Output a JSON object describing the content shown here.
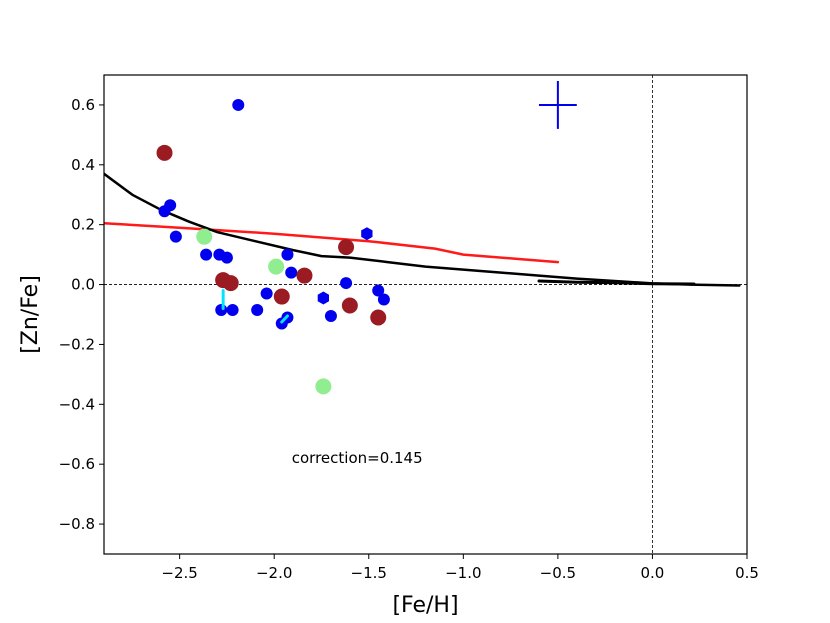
{
  "chart_data": {
    "type": "scatter",
    "title": "",
    "xlabel": "[Fe/H]",
    "ylabel": "[Zn/Fe]",
    "xlim": [
      -2.9,
      0.5
    ],
    "ylim": [
      -0.9,
      0.7
    ],
    "xticks": [
      -2.5,
      -2.0,
      -1.5,
      -1.0,
      -0.5,
      0.0,
      0.5
    ],
    "xtick_labels": [
      "−2.5",
      "−2.0",
      "−1.5",
      "−1.0",
      "−0.5",
      "0.0",
      "0.5"
    ],
    "yticks": [
      -0.8,
      -0.6,
      -0.4,
      -0.2,
      0.0,
      0.2,
      0.4,
      0.6
    ],
    "ytick_labels": [
      "−0.8",
      "−0.6",
      "−0.4",
      "−0.2",
      "0.0",
      "0.2",
      "0.4",
      "0.6"
    ],
    "grid": false,
    "reference_lines": [
      {
        "orientation": "horizontal",
        "value": 0.0,
        "style": "dashed",
        "color": "#000000"
      },
      {
        "orientation": "vertical",
        "value": 0.0,
        "style": "dashed",
        "color": "#000000"
      }
    ],
    "annotation": {
      "text": "correction=0.145",
      "x": -2.0,
      "y": -0.58
    },
    "error_bar": {
      "x": -0.5,
      "y": 0.6,
      "xerr": 0.1,
      "yerr": 0.08,
      "color": "#0000ee"
    },
    "colors": {
      "blue": "#0000ee",
      "darkred": "#9b1b22",
      "lightgreen": "#90ee90",
      "cyan": "#00e5ff",
      "red": "#ff1a1a",
      "black": "#000000"
    },
    "series": [
      {
        "name": "blue-points",
        "marker": "circle",
        "color": "#0000ee",
        "points": [
          [
            -2.19,
            0.6
          ],
          [
            -2.58,
            0.245
          ],
          [
            -2.55,
            0.265
          ],
          [
            -2.52,
            0.16
          ],
          [
            -2.36,
            0.1
          ],
          [
            -2.29,
            0.1
          ],
          [
            -2.25,
            0.09
          ],
          [
            -1.93,
            0.1
          ],
          [
            -1.91,
            0.04
          ],
          [
            -1.62,
            0.005
          ],
          [
            -2.28,
            -0.085
          ],
          [
            -2.22,
            -0.085
          ],
          [
            -2.09,
            -0.085
          ],
          [
            -2.04,
            -0.03
          ],
          [
            -1.96,
            -0.13
          ],
          [
            -1.93,
            -0.11
          ],
          [
            -1.7,
            -0.105
          ],
          [
            -1.45,
            -0.02
          ],
          [
            -1.42,
            -0.05
          ]
        ]
      },
      {
        "name": "blue-hexagons",
        "marker": "hexagon",
        "color": "#0000ee",
        "points": [
          [
            -1.51,
            0.17
          ],
          [
            -1.74,
            -0.045
          ]
        ]
      },
      {
        "name": "darkred-points",
        "marker": "circle-large",
        "color": "#9b1b22",
        "points": [
          [
            -2.58,
            0.44
          ],
          [
            -1.62,
            0.125
          ],
          [
            -2.27,
            0.015
          ],
          [
            -2.23,
            0.005
          ],
          [
            -1.84,
            0.03
          ],
          [
            -1.96,
            -0.04
          ],
          [
            -1.6,
            -0.07
          ],
          [
            -1.45,
            -0.11
          ]
        ]
      },
      {
        "name": "lightgreen-points",
        "marker": "circle-large",
        "color": "#90ee90",
        "points": [
          [
            -2.37,
            0.16
          ],
          [
            -1.99,
            0.06
          ],
          [
            -1.74,
            -0.34
          ]
        ]
      },
      {
        "name": "cyan-segments",
        "marker": "line",
        "color": "#00e5ff",
        "segments": [
          [
            [
              -2.27,
              -0.02
            ],
            [
              -2.27,
              -0.08
            ]
          ],
          [
            [
              -1.96,
              -0.125
            ],
            [
              -1.93,
              -0.105
            ]
          ]
        ]
      },
      {
        "name": "red-model-line",
        "marker": "line",
        "color": "#ff1a1a",
        "points": [
          [
            -2.9,
            0.205
          ],
          [
            -2.5,
            0.19
          ],
          [
            -2.0,
            0.17
          ],
          [
            -1.5,
            0.145
          ],
          [
            -1.15,
            0.12
          ],
          [
            -1.0,
            0.1
          ],
          [
            -0.7,
            0.085
          ],
          [
            -0.5,
            0.075
          ]
        ]
      },
      {
        "name": "black-model-line",
        "marker": "line",
        "color": "#000000",
        "points": [
          [
            -2.9,
            0.37
          ],
          [
            -2.75,
            0.3
          ],
          [
            -2.6,
            0.25
          ],
          [
            -2.45,
            0.21
          ],
          [
            -2.3,
            0.175
          ],
          [
            -2.1,
            0.145
          ],
          [
            -1.9,
            0.115
          ],
          [
            -1.75,
            0.095
          ],
          [
            -1.6,
            0.09
          ],
          [
            -1.4,
            0.075
          ],
          [
            -1.2,
            0.06
          ],
          [
            -1.0,
            0.05
          ],
          [
            -0.8,
            0.04
          ],
          [
            -0.6,
            0.03
          ],
          [
            -0.4,
            0.02
          ],
          [
            -0.2,
            0.012
          ],
          [
            0.0,
            0.004
          ],
          [
            0.2,
            0.0
          ],
          [
            0.46,
            -0.003
          ]
        ]
      },
      {
        "name": "black-thick-segment",
        "marker": "line",
        "color": "#000000",
        "points": [
          [
            -0.6,
            0.012
          ],
          [
            -0.4,
            0.008
          ],
          [
            -0.2,
            0.006
          ],
          [
            0.0,
            0.003
          ],
          [
            0.22,
            0.002
          ]
        ]
      }
    ]
  }
}
